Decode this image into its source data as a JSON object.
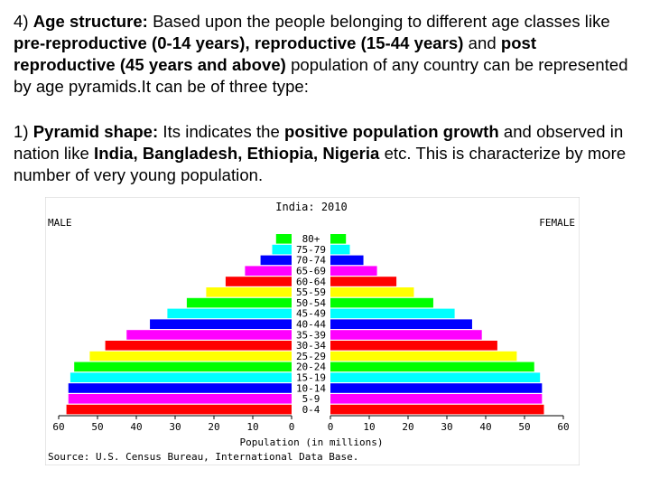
{
  "paragraph1": {
    "lead": "4) ",
    "heading": "Age structure:",
    "t1": " Based upon the people belonging to different age classes like ",
    "b1": "pre-reproductive (0-14 years), reproductive (15-44 years)",
    "t2": " and ",
    "b2": "post reproductive (45 years and above)",
    "t3": " population of any country can be represented by age pyramids.It can be of three type:"
  },
  "paragraph2": {
    "lead": "1) ",
    "heading": "Pyramid shape:",
    "t1": " Its indicates the ",
    "b1": "positive population growth",
    "t2": " and observed in nation like ",
    "b2": "India, Bangladesh, Ethiopia, Nigeria",
    "t3": " etc. This is characterize by more number of very young population."
  },
  "chart_data": {
    "type": "bar",
    "orientation": "horizontal-population-pyramid",
    "title": "India: 2010",
    "left_label": "MALE",
    "right_label": "FEMALE",
    "xlabel": "Population (in millions)",
    "source": "Source: U.S. Census Bureau, International Data Base.",
    "xlim": [
      0,
      60
    ],
    "x_ticks": [
      "60",
      "50",
      "40",
      "30",
      "20",
      "10",
      "0",
      "0",
      "10",
      "20",
      "30",
      "40",
      "50",
      "60"
    ],
    "categories": [
      "0-4",
      "5-9",
      "10-14",
      "15-19",
      "20-24",
      "25-29",
      "30-34",
      "35-39",
      "40-44",
      "45-49",
      "50-54",
      "55-59",
      "60-64",
      "65-69",
      "70-74",
      "75-79",
      "80+"
    ],
    "series": [
      {
        "name": "MALE",
        "values": [
          58,
          57.5,
          57.5,
          57,
          56,
          52,
          48,
          42.5,
          36.5,
          32,
          27,
          22,
          17,
          12,
          8,
          5,
          4
        ]
      },
      {
        "name": "FEMALE",
        "values": [
          55,
          54.5,
          54.5,
          54,
          52.5,
          48,
          43,
          39,
          36.5,
          32,
          26.5,
          21.5,
          17,
          12,
          8.5,
          5,
          4
        ]
      }
    ],
    "bar_colors_by_group": [
      "#ff0000",
      "#ff00ff",
      "#0000ff",
      "#00ffff",
      "#00ff00",
      "#ffff00",
      "#ff0000",
      "#ff00ff",
      "#0000ff",
      "#00ffff",
      "#00ff00",
      "#ffff00",
      "#ff0000",
      "#ff00ff",
      "#0000ff",
      "#00ffff",
      "#00ff00"
    ],
    "grid": false
  }
}
